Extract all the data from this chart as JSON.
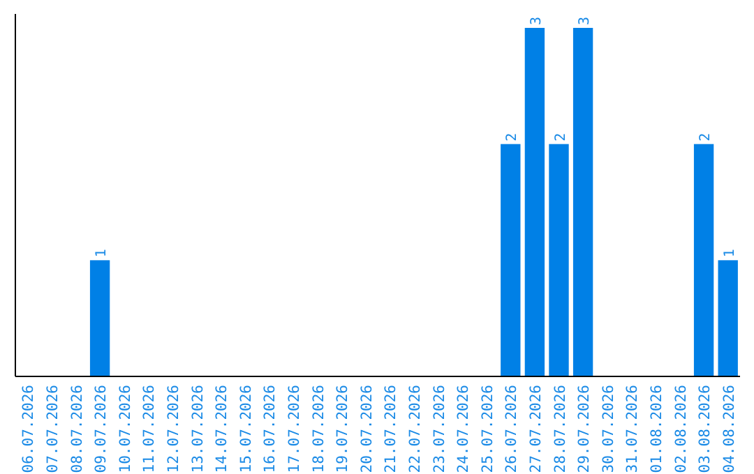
{
  "chart_data": {
    "type": "bar",
    "categories": [
      "06.07.2026",
      "07.07.2026",
      "08.07.2026",
      "09.07.2026",
      "10.07.2026",
      "11.07.2026",
      "12.07.2026",
      "13.07.2026",
      "14.07.2026",
      "15.07.2026",
      "16.07.2026",
      "17.07.2026",
      "18.07.2026",
      "19.07.2026",
      "20.07.2026",
      "21.07.2026",
      "22.07.2026",
      "23.07.2026",
      "24.07.2026",
      "25.07.2026",
      "26.07.2026",
      "27.07.2026",
      "28.07.2026",
      "29.07.2026",
      "30.07.2026",
      "31.07.2026",
      "01.08.2026",
      "02.08.2026",
      "03.08.2026",
      "04.08.2026"
    ],
    "values": [
      0,
      0,
      0,
      1,
      0,
      0,
      0,
      0,
      0,
      0,
      0,
      0,
      0,
      0,
      0,
      0,
      0,
      0,
      0,
      0,
      2,
      3,
      2,
      3,
      0,
      0,
      0,
      0,
      2,
      1
    ],
    "value_labels": [
      null,
      null,
      null,
      "1",
      null,
      null,
      null,
      null,
      null,
      null,
      null,
      null,
      null,
      null,
      null,
      null,
      null,
      null,
      null,
      null,
      "2",
      "3",
      "2",
      "3",
      null,
      null,
      null,
      null,
      "2",
      "1"
    ],
    "color": "#0080e6",
    "ylim": [
      0,
      3.12
    ],
    "tick_labels": "x"
  }
}
